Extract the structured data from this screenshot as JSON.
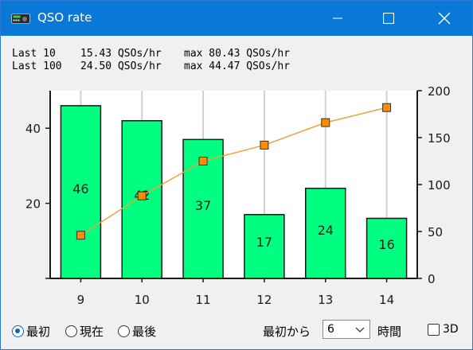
{
  "window": {
    "title": "QSO rate",
    "icon": "radio-transceiver-icon",
    "controls": [
      "minimize-icon",
      "maximize-icon",
      "close-icon"
    ]
  },
  "stats": {
    "last10": {
      "label": "Last 10",
      "rate": "15.43 QSOs/hr",
      "max": "max 80.43 QSOs/hr"
    },
    "last100": {
      "label": "Last 100",
      "rate": "24.50 QSOs/hr",
      "max": "max 44.47 QSOs/hr"
    }
  },
  "chart_data": {
    "type": "bar",
    "categories": [
      "9",
      "10",
      "11",
      "12",
      "13",
      "14"
    ],
    "series": [
      {
        "type": "bar",
        "values": [
          46,
          42,
          37,
          17,
          24,
          16
        ],
        "color": "#00ff80",
        "axis": "left"
      },
      {
        "type": "line",
        "values": [
          46,
          88,
          125,
          142,
          166,
          182
        ],
        "color": "#f0a040",
        "marker_color": "#ff8c00",
        "axis": "right"
      }
    ],
    "data_labels": [
      "46",
      "42",
      "37",
      "17",
      "24",
      "16"
    ],
    "y_left": {
      "ticks": [
        "20",
        "40"
      ],
      "tick_values": [
        0,
        20,
        40
      ],
      "range": [
        0,
        50
      ]
    },
    "y_right": {
      "ticks": [
        "0",
        "50",
        "100",
        "150",
        "200"
      ],
      "tick_values": [
        0,
        50,
        100,
        150,
        200
      ],
      "range": [
        0,
        200
      ]
    },
    "grid": "vertical"
  },
  "controls": {
    "radios": [
      {
        "label": "最初",
        "checked": true
      },
      {
        "label": "現在",
        "checked": false
      },
      {
        "label": "最後",
        "checked": false
      }
    ],
    "from_label": "最初から",
    "hours_select": "6",
    "hours_label": "時間",
    "checkbox_3d": {
      "label": "3D",
      "checked": false
    }
  }
}
